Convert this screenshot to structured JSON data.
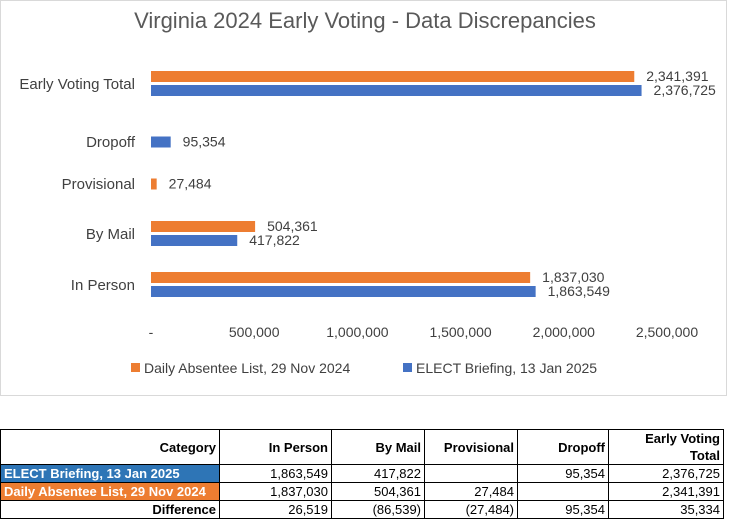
{
  "chart_data": {
    "type": "bar",
    "orientation": "horizontal",
    "title": "Virginia 2024 Early Voting - Data Discrepancies",
    "categories": [
      "Early Voting Total",
      "Dropoff",
      "Provisional",
      "By Mail",
      "In Person"
    ],
    "series": [
      {
        "name": "Daily Absentee List, 29 Nov 2024",
        "color": "#ed7d31",
        "values": [
          2341391,
          null,
          27484,
          504361,
          1837030
        ],
        "labels": [
          "2,341,391",
          "",
          "27,484",
          "504,361",
          "1,837,030"
        ]
      },
      {
        "name": "ELECT Briefing, 13 Jan 2025",
        "color": "#4472c4",
        "values": [
          2376725,
          95354,
          null,
          417822,
          1863549
        ],
        "labels": [
          "2,376,725",
          "95,354",
          "",
          "417,822",
          "1,863,549"
        ]
      }
    ],
    "xlim": [
      0,
      2500000
    ],
    "xticks": [
      {
        "value": 0,
        "label": "-"
      },
      {
        "value": 500000,
        "label": "500,000"
      },
      {
        "value": 1000000,
        "label": "1,000,000"
      },
      {
        "value": 1500000,
        "label": "1,500,000"
      },
      {
        "value": 2000000,
        "label": "2,000,000"
      },
      {
        "value": 2500000,
        "label": "2,500,000"
      }
    ],
    "grid": false,
    "legend_position": "bottom"
  },
  "table": {
    "headers": [
      "Category",
      "In Person",
      "By Mail",
      "Provisional",
      "Dropoff",
      "Early Voting Total"
    ],
    "rows": [
      {
        "label": "ELECT Briefing, 13 Jan 2025",
        "bg": "#2e75b6",
        "fg": "#ffffff",
        "cells": [
          "1,863,549",
          "417,822",
          "",
          "95,354",
          "2,376,725"
        ]
      },
      {
        "label": "Daily Absentee List, 29 Nov 2024",
        "bg": "#ed7d31",
        "fg": "#ffffff",
        "cells": [
          "1,837,030",
          "504,361",
          "27,484",
          "",
          "2,341,391"
        ]
      },
      {
        "label": "Difference",
        "bg": "#ffffff",
        "fg": "#000000",
        "cells": [
          "26,519",
          "(86,539)",
          "(27,484)",
          "95,354",
          "35,334"
        ]
      }
    ]
  }
}
